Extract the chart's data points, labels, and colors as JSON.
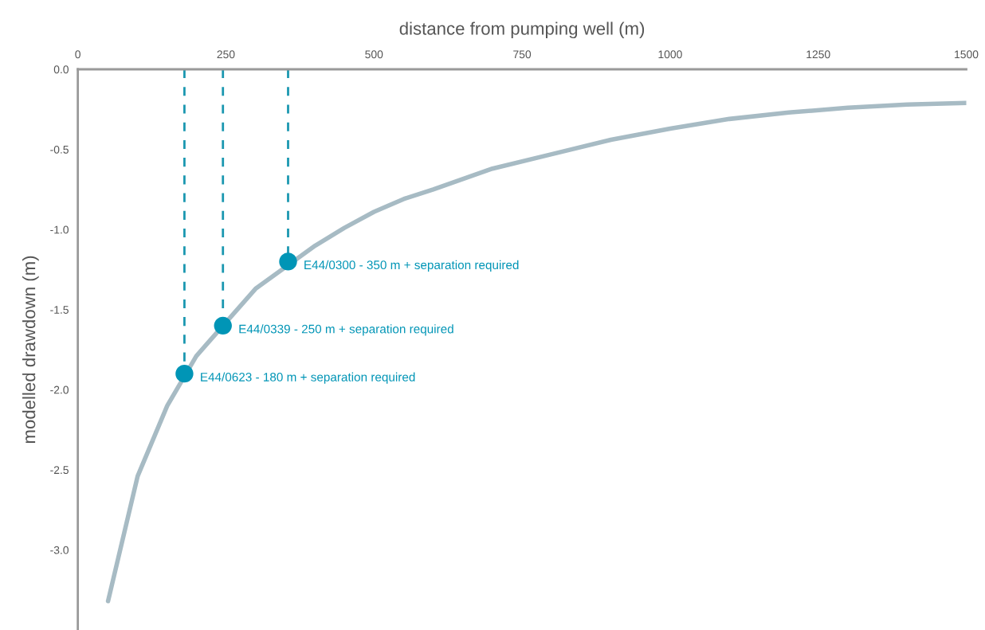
{
  "chart_data": {
    "type": "line",
    "xlabel": "distance from pumping well (m)",
    "ylabel": "modelled drawdown (m)",
    "xlim": [
      0,
      1500
    ],
    "xticks": [
      0,
      250,
      500,
      750,
      1000,
      1250,
      1500
    ],
    "ylim": [
      -3.5,
      0
    ],
    "yticks": [
      {
        "value": 0,
        "label": "0.0"
      },
      -0.5,
      {
        "value": -1,
        "label": "-1.0"
      },
      -1.5,
      {
        "value": -2,
        "label": "-2.0"
      },
      -2.5,
      {
        "value": -3,
        "label": "-3.0"
      }
    ],
    "grid": false,
    "legend": false,
    "series": [
      {
        "color": "#a7bbc4",
        "marker": "none",
        "line_style": "solid",
        "x": [
          51,
          101,
          151,
          200,
          300,
          401,
          450,
          500,
          550,
          600,
          700,
          800,
          900,
          1000,
          1100,
          1200,
          1300,
          1400,
          1500
        ],
        "values": [
          -3.32,
          -2.54,
          -2.1,
          -1.79,
          -1.37,
          -1.1,
          -0.99,
          -0.89,
          -0.81,
          -0.75,
          -0.62,
          -0.53,
          -0.44,
          -0.37,
          -0.31,
          -0.27,
          -0.24,
          -0.22,
          -0.21
        ]
      },
      {
        "color": "#1a97b0",
        "marker": "none",
        "line_style": "dashed",
        "x": [
          180,
          180
        ],
        "values": [
          0,
          -1.9
        ]
      },
      {
        "color": "#1a97b0",
        "marker": "none",
        "line_style": "dashed",
        "x": [
          245,
          245
        ],
        "values": [
          0,
          -1.6
        ]
      },
      {
        "color": "#1a97b0",
        "marker": "none",
        "line_style": "dashed",
        "x": [
          355,
          355
        ],
        "values": [
          0,
          -1.2
        ]
      },
      {
        "type": "scatter",
        "color": "#0095b6",
        "marker": "circle",
        "x": [
          180,
          245,
          355
        ],
        "values": [
          -1.9,
          -1.6,
          -1.2
        ]
      }
    ],
    "annotations": [
      {
        "text": "E44/0623 - 180 m + separation required",
        "x": 180,
        "y": -1.9
      },
      {
        "text": "E44/0339 - 250 m + separation required",
        "x": 245,
        "y": -1.6
      },
      {
        "text": "E44/0300 - 350 m + separation required",
        "x": 355,
        "y": -1.2
      }
    ]
  }
}
